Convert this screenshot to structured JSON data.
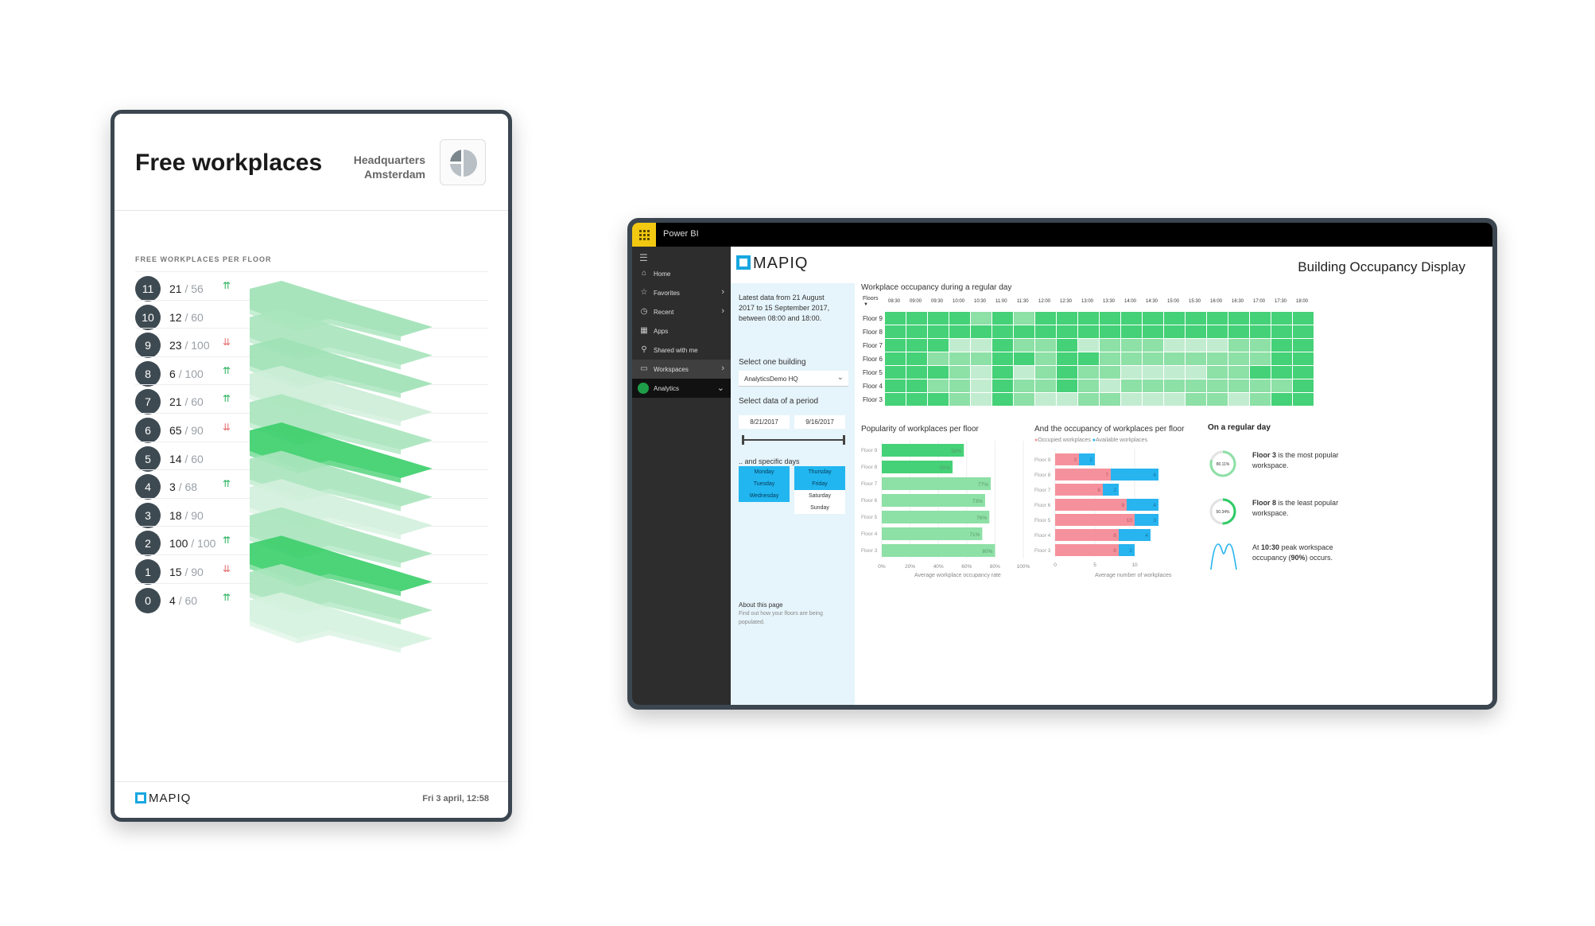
{
  "tablet": {
    "title": "Free workplaces",
    "location_line1": "Headquarters",
    "location_line2": "Amsterdam",
    "section_label": "FREE WORKPLACES PER FLOOR",
    "floors": [
      {
        "floor": "11",
        "free": "21",
        "total": "/ 56",
        "trend": "up",
        "arrow": "⇈"
      },
      {
        "floor": "10",
        "free": "12",
        "total": "/ 60",
        "trend": "none",
        "arrow": ""
      },
      {
        "floor": "9",
        "free": "23",
        "total": "/ 100",
        "trend": "down",
        "arrow": "⇊"
      },
      {
        "floor": "8",
        "free": "6",
        "total": "/ 100",
        "trend": "up",
        "arrow": "⇈"
      },
      {
        "floor": "7",
        "free": "21",
        "total": "/ 60",
        "trend": "up",
        "arrow": "⇈"
      },
      {
        "floor": "6",
        "free": "65",
        "total": "/ 90",
        "trend": "down",
        "arrow": "⇊"
      },
      {
        "floor": "5",
        "free": "14",
        "total": "/ 60",
        "trend": "none",
        "arrow": ""
      },
      {
        "floor": "4",
        "free": "3",
        "total": "/ 68",
        "trend": "up",
        "arrow": "⇈"
      },
      {
        "floor": "3",
        "free": "18",
        "total": "/ 90",
        "trend": "none",
        "arrow": ""
      },
      {
        "floor": "2",
        "free": "100",
        "total": "/ 100",
        "trend": "up",
        "arrow": "⇈"
      },
      {
        "floor": "1",
        "free": "15",
        "total": "/ 90",
        "trend": "down",
        "arrow": "⇊"
      },
      {
        "floor": "0",
        "free": "4",
        "total": "/ 60",
        "trend": "up",
        "arrow": "⇈"
      }
    ],
    "footer_brand": "MAPIQ",
    "footer_date": "Fri 3 april, 12:58"
  },
  "powerbi": {
    "app_title": "Power BI",
    "nav": [
      {
        "label": "Home",
        "icon": "home-icon"
      },
      {
        "label": "Favorites",
        "icon": "star-icon"
      },
      {
        "label": "Recent",
        "icon": "clock-icon"
      },
      {
        "label": "Apps",
        "icon": "apps-icon"
      },
      {
        "label": "Shared with me",
        "icon": "share-icon"
      },
      {
        "label": "Workspaces",
        "icon": "workspaces-icon"
      },
      {
        "label": "Analytics",
        "icon": "analytics-icon"
      }
    ]
  },
  "report": {
    "brand": "MAPIQ",
    "title": "Building Occupancy Display",
    "filter": {
      "intro": [
        "Latest data from 21 August",
        "2017 to 15 September 2017,",
        "between 08:00 and 18:00."
      ],
      "building_label": "Select one building",
      "building_value": "AnalyticsDemo HQ",
      "period_label": "Select data of a period",
      "date_from": "8/21/2017",
      "date_to": "9/16/2017",
      "days_label": ".. and specific days",
      "days": [
        {
          "label": "Monday",
          "on": true
        },
        {
          "label": "Thursday",
          "on": true
        },
        {
          "label": "Tuesday",
          "on": true
        },
        {
          "label": "Friday",
          "on": true
        },
        {
          "label": "Wednesday",
          "on": true
        },
        {
          "label": "Saturday",
          "on": false
        },
        {
          "label": "Sunday",
          "on": false
        }
      ],
      "about_title": "About this page",
      "about_text": [
        "Find out how your floors are being",
        "populated."
      ]
    },
    "heatmap_title": "Workplace occupancy during a regular day",
    "heatmap_corner": "Floors",
    "popularity_title": "Popularity of workplaces per floor",
    "popularity_xlabel": "Average workplace occupancy rate",
    "occupancy_title": "And the occupancy of workplaces per floor",
    "occupancy_legend": [
      "Occupied workplaces",
      "Available workplaces"
    ],
    "occupancy_xlabel": "Average number of workplaces",
    "regular_day": {
      "title": "On a regular day",
      "most_pct": "80.11%",
      "most_strong": "Floor 3",
      "most_rest": " is the most popular workspace.",
      "least_pct": "50.34%",
      "least_strong": "Floor 8",
      "least_rest": " is the least popular workspace.",
      "peak_pre": "At ",
      "peak_time": "10:30",
      "peak_mid": " peak workspace occupancy (",
      "peak_pct": "90%",
      "peak_post": ") occurs."
    },
    "colors": {
      "green_dark": "#2ecc64",
      "green": "#45d177",
      "green_mid": "#8de0a6",
      "green_light": "#c2ecd0",
      "pink": "#f5919c",
      "blue": "#27b4ef"
    }
  },
  "chart_data": [
    {
      "type": "heatmap",
      "title": "Workplace occupancy during a regular day",
      "x": [
        "08:30",
        "09:00",
        "09:30",
        "10:00",
        "10:30",
        "11:00",
        "11:30",
        "12:00",
        "12:30",
        "13:00",
        "13:30",
        "14:00",
        "14:30",
        "15:00",
        "15:30",
        "16:00",
        "16:30",
        "17:00",
        "17:30",
        "18:00"
      ],
      "y": [
        "Floor 9",
        "Floor 8",
        "Floor 7",
        "Floor 6",
        "Floor 5",
        "Floor 4",
        "Floor 3"
      ],
      "levels": [
        [
          3,
          3,
          3,
          3,
          2,
          3,
          2,
          3,
          3,
          3,
          3,
          3,
          3,
          3,
          3,
          3,
          3,
          3,
          3,
          3
        ],
        [
          3,
          3,
          3,
          3,
          3,
          3,
          3,
          3,
          3,
          3,
          3,
          3,
          3,
          3,
          3,
          3,
          3,
          3,
          3,
          3
        ],
        [
          3,
          3,
          3,
          1,
          1,
          3,
          2,
          2,
          3,
          1,
          2,
          2,
          2,
          1,
          1,
          1,
          2,
          2,
          3,
          3
        ],
        [
          3,
          3,
          2,
          2,
          2,
          3,
          3,
          2,
          3,
          3,
          2,
          2,
          2,
          2,
          2,
          2,
          2,
          2,
          3,
          3
        ],
        [
          3,
          3,
          3,
          2,
          1,
          3,
          1,
          2,
          3,
          2,
          2,
          1,
          1,
          1,
          1,
          2,
          2,
          3,
          3,
          3
        ],
        [
          3,
          3,
          2,
          2,
          1,
          3,
          2,
          2,
          3,
          2,
          1,
          2,
          2,
          2,
          2,
          2,
          2,
          2,
          2,
          3
        ],
        [
          3,
          3,
          3,
          2,
          1,
          3,
          2,
          1,
          1,
          2,
          2,
          1,
          1,
          1,
          2,
          2,
          1,
          2,
          3,
          3
        ]
      ]
    },
    {
      "type": "bar",
      "title": "Popularity of workplaces per floor",
      "categories": [
        "Floor 9",
        "Floor 8",
        "Floor 7",
        "Floor 6",
        "Floor 5",
        "Floor 4",
        "Floor 3"
      ],
      "values": [
        58,
        50,
        77,
        73,
        76,
        71,
        80
      ],
      "labels": [
        "58%",
        "50%",
        "77%",
        "73%",
        "76%",
        "71%",
        "80%"
      ],
      "xticks": [
        "0%",
        "20%",
        "40%",
        "60%",
        "80%",
        "100%"
      ],
      "xlim": [
        0,
        100
      ],
      "xlabel": "Average workplace occupancy rate"
    },
    {
      "type": "bar",
      "title": "And the occupancy of workplaces per floor",
      "categories": [
        "Floor 9",
        "Floor 8",
        "Floor 7",
        "Floor 6",
        "Floor 5",
        "Floor 4",
        "Floor 3"
      ],
      "series": [
        {
          "name": "Occupied workplaces",
          "values": [
            3,
            7,
            6,
            9,
            10,
            8,
            8
          ]
        },
        {
          "name": "Available workplaces",
          "values": [
            2,
            6,
            2,
            4,
            3,
            4,
            2
          ]
        }
      ],
      "xticks": [
        "0",
        "5",
        "10"
      ],
      "xlim": [
        0,
        17
      ],
      "xlabel": "Average number of workplaces"
    }
  ]
}
